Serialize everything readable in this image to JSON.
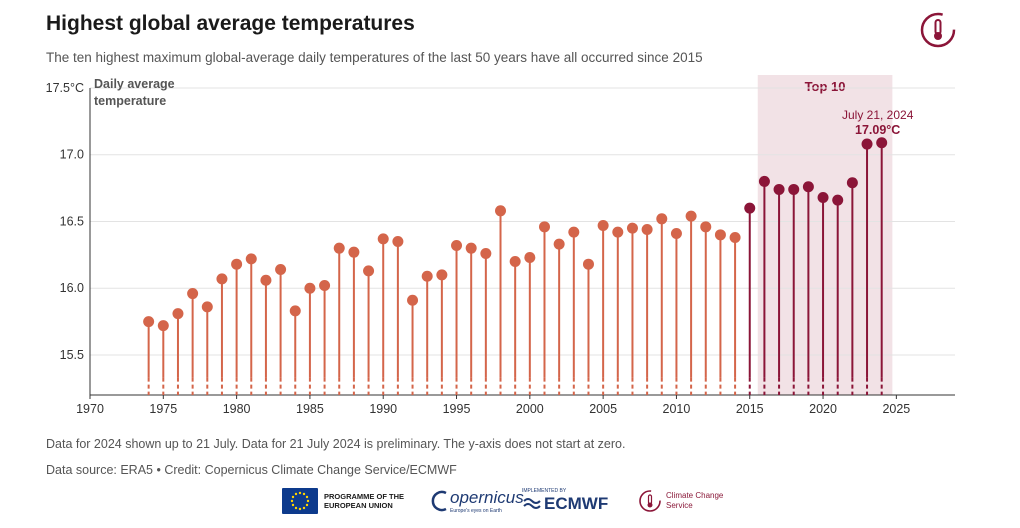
{
  "header": {
    "title": "Highest global average temperatures",
    "subtitle": "The ten highest maximum global-average daily temperatures of the last 50 years have all occurred since 2015"
  },
  "notes": {
    "note1": "Data for 2024 shown up to 21 July. Data for 21 July 2024 is preliminary. The y-axis does not start at zero.",
    "note2": "Data source: ERA5 • Credit: Copernicus Climate Change Service/ECMWF"
  },
  "footer": {
    "eu_label": "PROGRAMME OF THE EUROPEAN UNION",
    "copernicus_label": "opernicus",
    "copernicus_tagline": "Europe's eyes on Earth",
    "ecmwf_small": "IMPLEMENTED BY",
    "ecmwf_label": "ECMWF",
    "c3s_label": "Climate Change Service"
  },
  "colors": {
    "regular": "#d4654a",
    "top10": "#8b1538",
    "top10_band": "#f2e2e6",
    "top10_label": "#8b1538"
  },
  "chart_data": {
    "type": "lollipop",
    "ylabel": "Daily average temperature",
    "y_unit": "°C",
    "ylim": [
      15.2,
      17.5
    ],
    "yticks": [
      15.5,
      16.0,
      16.5,
      17.0,
      17.5
    ],
    "ytick_labels": [
      "15.5",
      "16.0",
      "16.5",
      "17.0",
      "17.5°C"
    ],
    "xlim": [
      1970,
      2029
    ],
    "xticks": [
      1970,
      1975,
      1980,
      1985,
      1990,
      1995,
      2000,
      2005,
      2010,
      2015,
      2020,
      2025
    ],
    "grid": "horizontal",
    "top10_label": "Top 10",
    "top10_range": [
      2015,
      2025
    ],
    "annotation": {
      "date": "July 21, 2024",
      "value_label": "17.09°C",
      "year": 2024
    },
    "series": [
      {
        "years": [
          1974,
          1975,
          1976,
          1977,
          1978,
          1979,
          1980,
          1981,
          1982,
          1983,
          1984,
          1985,
          1986,
          1987,
          1988,
          1989,
          1990,
          1991,
          1992,
          1993,
          1994,
          1995,
          1996,
          1997,
          1998,
          1999,
          2000,
          2001,
          2002,
          2003,
          2004,
          2005,
          2006,
          2007,
          2008,
          2009,
          2010,
          2011,
          2012,
          2013,
          2014
        ],
        "values": [
          15.75,
          15.72,
          15.81,
          15.96,
          15.86,
          16.07,
          16.18,
          16.22,
          16.06,
          16.14,
          15.83,
          16.0,
          16.02,
          16.3,
          16.27,
          16.13,
          16.37,
          16.35,
          15.91,
          16.09,
          16.1,
          16.32,
          16.3,
          16.26,
          16.58,
          16.2,
          16.23,
          16.46,
          16.33,
          16.42,
          16.18,
          16.47,
          16.42,
          16.45,
          16.44,
          16.52,
          16.41,
          16.54,
          16.46,
          16.4,
          16.38
        ]
      },
      {
        "years": [
          2015,
          2016,
          2017,
          2018,
          2019,
          2020,
          2021,
          2022,
          2023,
          2024
        ],
        "values": [
          16.6,
          16.8,
          16.74,
          16.74,
          16.76,
          16.68,
          16.66,
          16.79,
          17.08,
          17.09
        ]
      }
    ]
  }
}
